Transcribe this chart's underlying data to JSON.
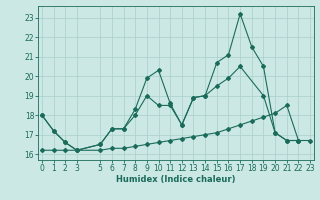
{
  "xlabel": "Humidex (Indice chaleur)",
  "line1_x": [
    0,
    1,
    2,
    3,
    5,
    6,
    7,
    8,
    9,
    10,
    11,
    12,
    13,
    14,
    15,
    16,
    17,
    18,
    19,
    20,
    21,
    22
  ],
  "line1_y": [
    18.0,
    17.2,
    16.6,
    16.2,
    16.5,
    17.3,
    17.3,
    18.3,
    19.9,
    20.3,
    18.6,
    17.5,
    18.9,
    19.0,
    20.7,
    21.1,
    23.2,
    21.5,
    20.5,
    17.1,
    16.7,
    16.7
  ],
  "line2_x": [
    0,
    1,
    2,
    3,
    5,
    6,
    7,
    8,
    9,
    10,
    11,
    12,
    13,
    14,
    15,
    16,
    17,
    19,
    20,
    21,
    22
  ],
  "line2_y": [
    18.0,
    17.2,
    16.6,
    16.2,
    16.5,
    17.3,
    17.3,
    18.0,
    19.0,
    18.5,
    18.5,
    17.5,
    18.9,
    19.0,
    19.5,
    19.9,
    20.5,
    19.0,
    17.1,
    16.7,
    16.7
  ],
  "line3_x": [
    0,
    1,
    2,
    3,
    5,
    6,
    7,
    8,
    9,
    10,
    11,
    12,
    13,
    14,
    15,
    16,
    17,
    18,
    19,
    20,
    21,
    22,
    23
  ],
  "line3_y": [
    16.2,
    16.2,
    16.2,
    16.2,
    16.2,
    16.3,
    16.3,
    16.4,
    16.5,
    16.6,
    16.7,
    16.8,
    16.9,
    17.0,
    17.1,
    17.3,
    17.5,
    17.7,
    17.9,
    18.1,
    18.5,
    16.7,
    16.7
  ],
  "line_color": "#1a6b5a",
  "bg_color": "#cce8e5",
  "grid_color": "#aacfcc",
  "ylim": [
    15.7,
    23.6
  ],
  "yticks": [
    16,
    17,
    18,
    19,
    20,
    21,
    22,
    23
  ],
  "xlim": [
    -0.3,
    23.3
  ],
  "xticks": [
    0,
    1,
    2,
    3,
    5,
    6,
    7,
    8,
    9,
    10,
    11,
    12,
    13,
    14,
    15,
    16,
    17,
    18,
    19,
    20,
    21,
    22,
    23
  ]
}
